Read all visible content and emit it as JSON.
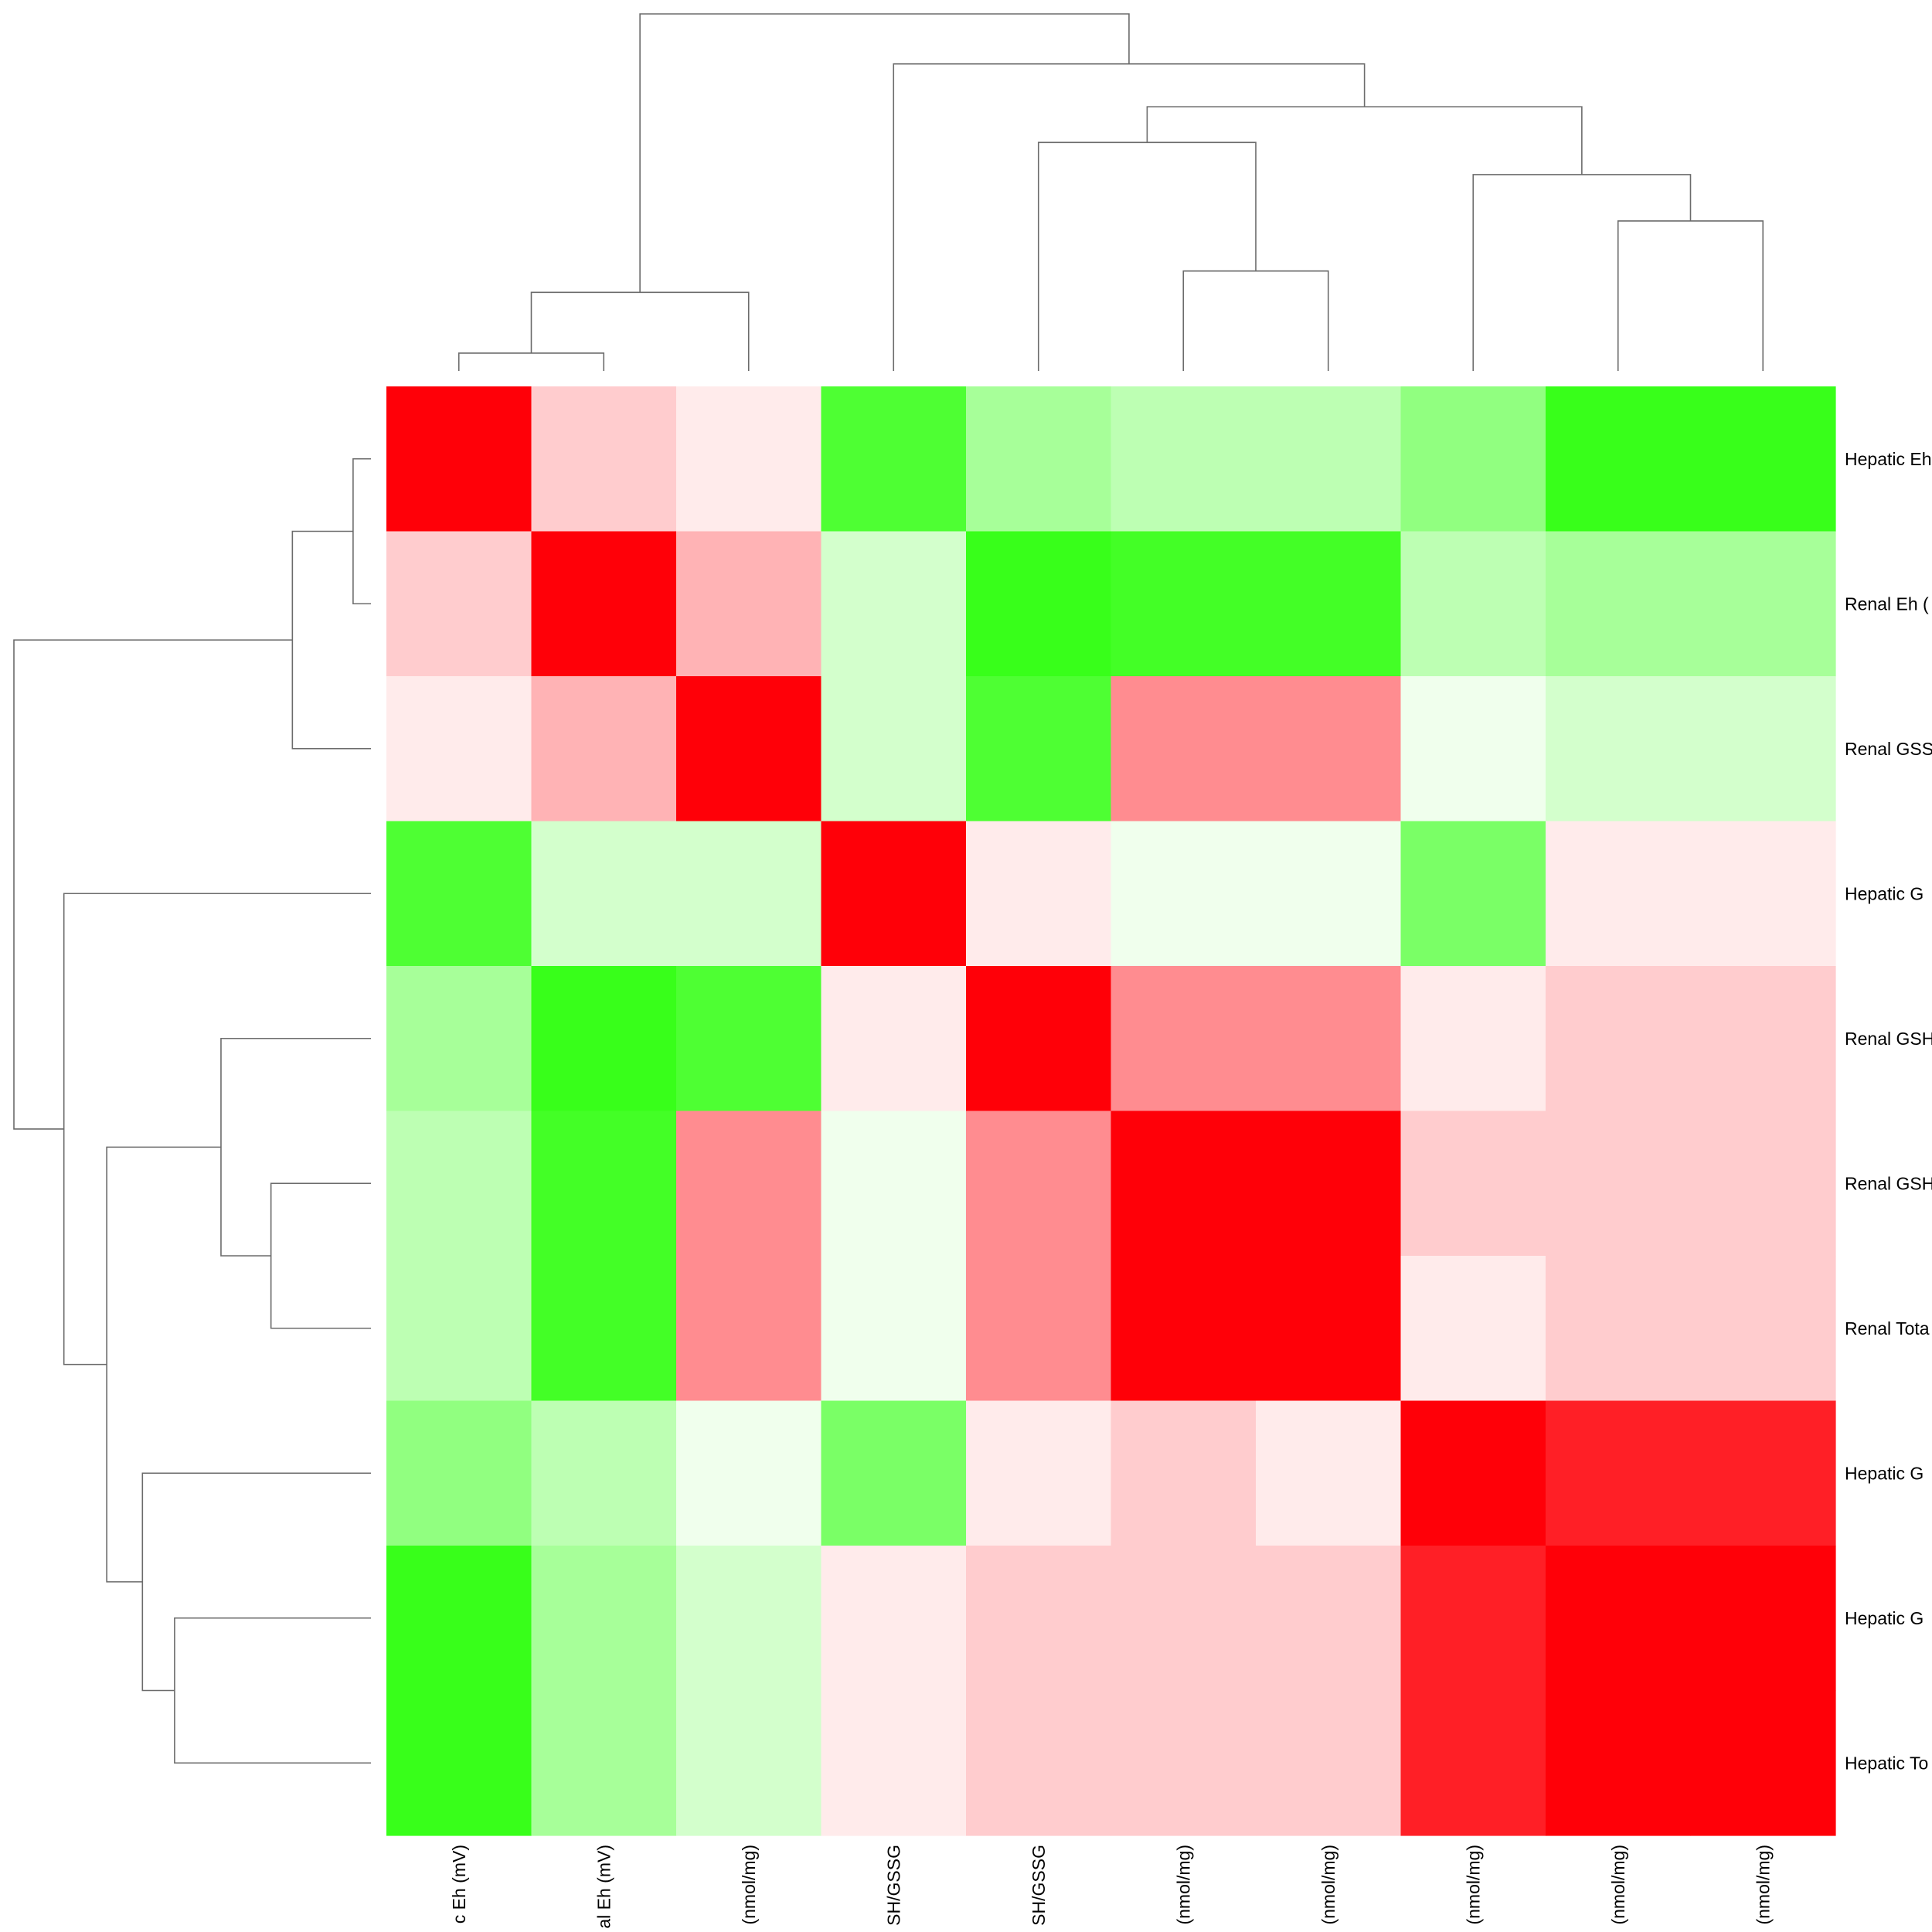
{
  "chart_data": {
    "type": "heatmap",
    "title": "",
    "xlabel": "",
    "ylabel": "",
    "rows": [
      "Hepatic Eh",
      "Renal Eh (",
      "Renal GSS",
      "Hepatic G",
      "Renal GSH",
      "Renal GSH",
      "Renal Tota",
      "Hepatic G",
      "Hepatic G",
      "Hepatic To"
    ],
    "columns": [
      "c Eh (mV)",
      "al Eh (mV)",
      "(nmol/mg)",
      "SH/GSSG",
      "SH/GSSG",
      "(nmol/mg)",
      "(nmol/mg)",
      "(nmol/mg)",
      "(nmol/mg)",
      "(nmol/mg)"
    ],
    "scale": {
      "min": -1,
      "max": 1,
      "low_color": "#22ff00",
      "mid_color": "#ffffff",
      "high_color": "#ff0008"
    },
    "values": [
      [
        1.0,
        0.2,
        0.08,
        -0.8,
        -0.4,
        -0.3,
        -0.3,
        -0.5,
        -0.9,
        -0.9
      ],
      [
        0.2,
        1.0,
        0.3,
        -0.2,
        -0.9,
        -0.85,
        -0.85,
        -0.3,
        -0.4,
        -0.4
      ],
      [
        0.08,
        0.3,
        1.0,
        -0.2,
        -0.8,
        0.45,
        0.45,
        -0.07,
        -0.2,
        -0.2
      ],
      [
        -0.8,
        -0.2,
        -0.2,
        1.0,
        0.08,
        -0.07,
        -0.07,
        -0.6,
        0.08,
        0.08
      ],
      [
        -0.4,
        -0.9,
        -0.8,
        0.08,
        1.0,
        0.45,
        0.45,
        0.08,
        0.2,
        0.2
      ],
      [
        -0.3,
        -0.85,
        0.45,
        -0.07,
        0.45,
        1.0,
        1.0,
        0.2,
        0.2,
        0.2
      ],
      [
        -0.3,
        -0.85,
        0.45,
        -0.07,
        0.45,
        1.0,
        1.0,
        0.08,
        0.2,
        0.2
      ],
      [
        -0.5,
        -0.3,
        -0.07,
        -0.6,
        0.08,
        0.2,
        0.08,
        1.0,
        0.88,
        0.88
      ],
      [
        -0.9,
        -0.4,
        -0.2,
        0.08,
        0.2,
        0.2,
        0.2,
        0.88,
        1.0,
        1.0
      ],
      [
        -0.9,
        -0.4,
        -0.2,
        0.08,
        0.2,
        0.2,
        0.2,
        0.88,
        1.0,
        1.0
      ]
    ],
    "row_dendrogram": [
      [
        0,
        1
      ],
      [
        10,
        2
      ],
      [
        5,
        6
      ],
      [
        4,
        12
      ],
      [
        8,
        9
      ],
      [
        7,
        14
      ],
      [
        13,
        15
      ],
      [
        3,
        16
      ],
      [
        11,
        17
      ]
    ],
    "col_dendrogram": [
      [
        0,
        1
      ],
      [
        10,
        2
      ],
      [
        5,
        6
      ],
      [
        8,
        9
      ],
      [
        7,
        13
      ],
      [
        4,
        12
      ],
      [
        15,
        14
      ],
      [
        3,
        16
      ],
      [
        11,
        17
      ]
    ],
    "legend": "none",
    "grid": false
  }
}
